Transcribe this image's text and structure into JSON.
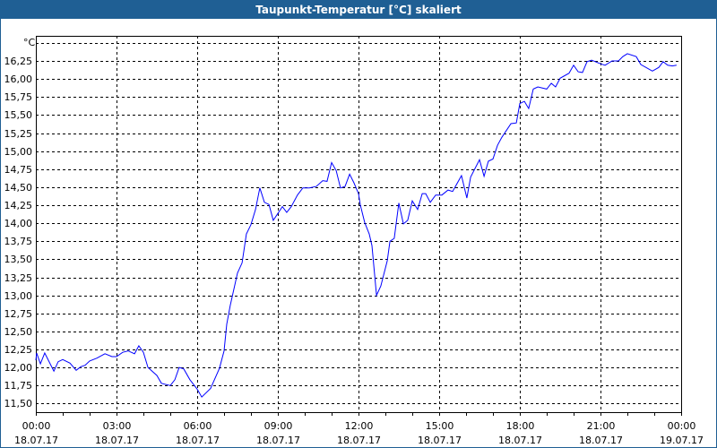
{
  "window": {
    "title": "Taupunkt-Temperatur [°C] skaliert"
  },
  "colors": {
    "titlebar": "#1f5f94",
    "series": "#0000ff"
  },
  "chart_data": {
    "type": "line",
    "title": "Taupunkt-Temperatur [°C] skaliert",
    "ylabel": "°C",
    "xlabel": "",
    "ylim": [
      11.5,
      16.5
    ],
    "xlim": [
      0,
      24
    ],
    "grid": true,
    "yticks": [
      "16,25",
      "16,00",
      "15,75",
      "15,50",
      "15,25",
      "15,00",
      "14,75",
      "14,50",
      "14,25",
      "14,00",
      "13,75",
      "13,50",
      "13,25",
      "13,00",
      "12,75",
      "12,50",
      "12,25",
      "12,00",
      "11,75",
      "11,50"
    ],
    "ytick_values": [
      16.25,
      16.0,
      15.75,
      15.5,
      15.25,
      15.0,
      14.75,
      14.5,
      14.25,
      14.0,
      13.75,
      13.5,
      13.25,
      13.0,
      12.75,
      12.5,
      12.25,
      12.0,
      11.75,
      11.5
    ],
    "xticks": [
      {
        "time": "00:00",
        "date": "18.07.17",
        "h": 0
      },
      {
        "time": "03:00",
        "date": "18.07.17",
        "h": 3
      },
      {
        "time": "06:00",
        "date": "18.07.17",
        "h": 6
      },
      {
        "time": "09:00",
        "date": "18.07.17",
        "h": 9
      },
      {
        "time": "12:00",
        "date": "18.07.17",
        "h": 12
      },
      {
        "time": "15:00",
        "date": "18.07.17",
        "h": 15
      },
      {
        "time": "18:00",
        "date": "18.07.17",
        "h": 18
      },
      {
        "time": "21:00",
        "date": "18.07.17",
        "h": 21
      },
      {
        "time": "00:00",
        "date": "19.07.17",
        "h": 24
      }
    ],
    "series": [
      {
        "name": "Taupunkt",
        "x": [
          0,
          0.03,
          0.17,
          0.33,
          0.67,
          0.83,
          1.0,
          1.27,
          1.5,
          1.67,
          1.83,
          2.0,
          2.27,
          2.57,
          2.83,
          3.0,
          3.23,
          3.43,
          3.67,
          3.83,
          4.0,
          4.17,
          4.5,
          4.67,
          5.0,
          5.17,
          5.33,
          5.5,
          5.73,
          6.0,
          6.17,
          6.5,
          6.83,
          7.0,
          7.1,
          7.23,
          7.5,
          7.67,
          7.83,
          8.0,
          8.17,
          8.33,
          8.5,
          8.67,
          8.83,
          9.17,
          9.33,
          9.5,
          9.73,
          9.93,
          10.17,
          10.43,
          10.67,
          10.83,
          11.0,
          11.17,
          11.33,
          11.5,
          11.67,
          11.83,
          12.0,
          12.07,
          12.23,
          12.4,
          12.5,
          12.67,
          12.83,
          13.07,
          13.17,
          13.33,
          13.5,
          13.67,
          13.83,
          14.0,
          14.2,
          14.37,
          14.5,
          14.67,
          14.87,
          15.1,
          15.33,
          15.5,
          15.83,
          16.03,
          16.17,
          16.5,
          16.67,
          16.83,
          17.0,
          17.17,
          17.33,
          17.67,
          17.87,
          18.0,
          18.17,
          18.33,
          18.5,
          18.67,
          19.0,
          19.17,
          19.33,
          19.5,
          19.83,
          20.0,
          20.17,
          20.33,
          20.5,
          20.67,
          21.0,
          21.17,
          21.43,
          21.67,
          21.83,
          22.0,
          22.33,
          22.5,
          22.93,
          23.17,
          23.33,
          23.5,
          23.67,
          23.83
        ],
        "y": [
          12.1,
          12.2,
          12.05,
          12.2,
          11.95,
          12.08,
          12.11,
          12.06,
          11.96,
          12.01,
          12.03,
          12.09,
          12.13,
          12.19,
          12.15,
          12.15,
          12.21,
          12.23,
          12.19,
          12.3,
          12.21,
          12.0,
          11.89,
          11.78,
          11.75,
          11.83,
          12.0,
          11.98,
          11.83,
          11.7,
          11.59,
          11.71,
          11.99,
          12.23,
          12.6,
          12.86,
          13.31,
          13.45,
          13.85,
          13.98,
          14.19,
          14.49,
          14.29,
          14.26,
          14.04,
          14.23,
          14.15,
          14.23,
          14.39,
          14.49,
          14.49,
          14.51,
          14.59,
          14.58,
          14.84,
          14.73,
          14.49,
          14.51,
          14.68,
          14.56,
          14.41,
          14.25,
          14.01,
          13.85,
          13.69,
          13.0,
          13.13,
          13.48,
          13.75,
          13.79,
          14.28,
          13.99,
          14.04,
          14.31,
          14.19,
          14.41,
          14.41,
          14.29,
          14.39,
          14.39,
          14.46,
          14.44,
          14.66,
          14.35,
          14.64,
          14.88,
          14.65,
          14.86,
          14.89,
          15.08,
          15.19,
          15.38,
          15.39,
          15.66,
          15.69,
          15.59,
          15.86,
          15.89,
          15.86,
          15.94,
          15.89,
          16.01,
          16.08,
          16.19,
          16.1,
          16.09,
          16.24,
          16.26,
          16.21,
          16.19,
          16.25,
          16.25,
          16.31,
          16.35,
          16.31,
          16.2,
          16.11,
          16.16,
          16.24,
          16.19,
          16.18,
          16.19
        ]
      }
    ]
  }
}
